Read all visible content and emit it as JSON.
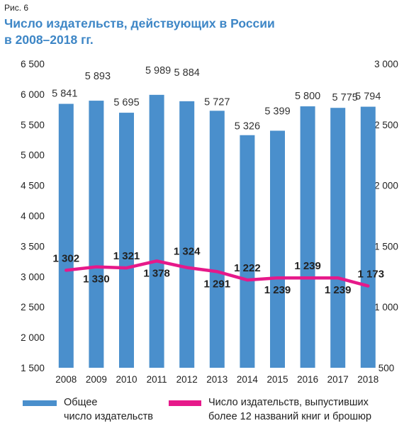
{
  "figure_label": "Рис. 6",
  "title_line1": "Число издательств, действующих в России",
  "title_line2": "в 2008–2018 гг.",
  "colors": {
    "bars": "#4a8fcc",
    "line": "#e6198a",
    "title": "#3d86c6"
  },
  "legend": {
    "bars_line1": "Общее",
    "bars_line2": "число издательств",
    "line_line1": "Число издательств, выпустивших",
    "line_line2": "более 12 названий книг и брошюр"
  },
  "chart_data": {
    "type": "bar",
    "categories": [
      "2008",
      "2009",
      "2010",
      "2011",
      "2012",
      "2013",
      "2014",
      "2015",
      "2016",
      "2017",
      "2018"
    ],
    "series": [
      {
        "name": "Общее число издательств",
        "type": "bar",
        "axis": "left",
        "values": [
          5841,
          5893,
          5695,
          5989,
          5884,
          5727,
          5326,
          5399,
          5800,
          5775,
          5794
        ],
        "labels": [
          "5 841",
          "5 893",
          "5 695",
          "5 989",
          "5 884",
          "5 727",
          "5 326",
          "5 399",
          "5 800",
          "5 775",
          "5 794"
        ]
      },
      {
        "name": "Число издательств, выпустивших более 12 названий книг и брошюр",
        "type": "line",
        "axis": "right",
        "values": [
          1302,
          1330,
          1321,
          1378,
          1324,
          1291,
          1222,
          1239,
          1239,
          1239,
          1173
        ],
        "labels": [
          "1 302",
          "1 330",
          "1 321",
          "1 378",
          "1 324",
          "1 291",
          "1 222",
          "1 239",
          "1 239",
          "1 239",
          "1 173"
        ]
      }
    ],
    "left_axis": {
      "ylim": [
        1500,
        6500
      ],
      "ticks": [
        1500,
        2000,
        2500,
        3000,
        3500,
        4000,
        4500,
        5000,
        5500,
        6000,
        6500
      ],
      "tick_labels": [
        "1 500",
        "2 000",
        "2 500",
        "3 000",
        "3 500",
        "4 000",
        "4 500",
        "5 000",
        "5 500",
        "6 000",
        "6 500"
      ]
    },
    "right_axis": {
      "ylim": [
        500,
        3000
      ],
      "ticks": [
        500,
        1000,
        1500,
        2000,
        2500,
        3000
      ],
      "tick_labels": [
        "500",
        "1 000",
        "1 500",
        "2 000",
        "2 500",
        "3 000"
      ]
    },
    "grid": false,
    "legend_position": "bottom"
  }
}
